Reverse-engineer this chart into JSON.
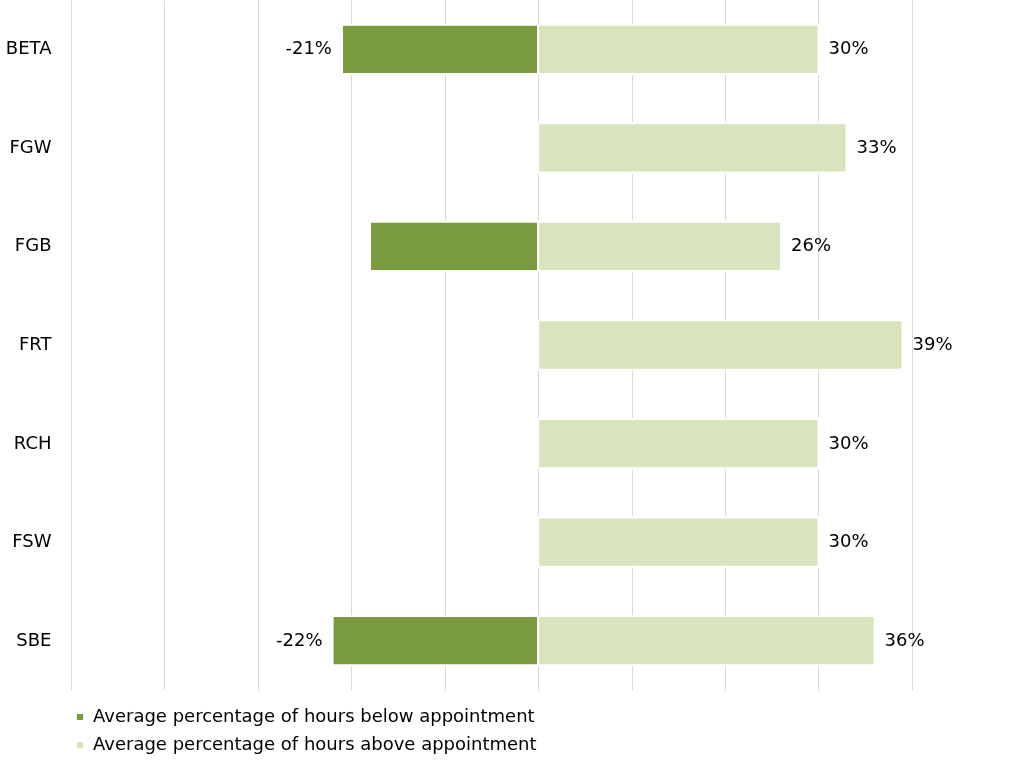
{
  "chart_data": {
    "type": "bar",
    "orientation": "horizontal",
    "stacked": true,
    "categories": [
      "BETA",
      "FGW",
      "FGB",
      "FRT",
      "RCH",
      "FSW",
      "SBE"
    ],
    "series": [
      {
        "name": "Average percentage of hours below appointment",
        "color": "#7a9a3e",
        "values": [
          -21,
          null,
          -18,
          null,
          null,
          null,
          -22
        ],
        "value_labels": [
          "-21%",
          null,
          null,
          null,
          null,
          null,
          "-22%"
        ]
      },
      {
        "name": "Average percentage of hours above appointment",
        "color": "#d8e4bc",
        "values": [
          30,
          33,
          26,
          39,
          30,
          30,
          36
        ],
        "value_labels": [
          "30%",
          "33%",
          "26%",
          "39%",
          "30%",
          "30%",
          "36%"
        ]
      }
    ],
    "xlim": [
      -50,
      49
    ],
    "xticks": [
      {
        "value": -50,
        "label": null
      },
      {
        "value": -40,
        "label": null
      },
      {
        "value": -30,
        "label": null
      },
      {
        "value": -20,
        "label": null
      },
      {
        "value": -10,
        "label": null
      },
      {
        "value": 0,
        "label": null
      },
      {
        "value": 10,
        "label": null
      },
      {
        "value": 20,
        "label": null
      },
      {
        "value": 30,
        "label": null
      },
      {
        "value": 40,
        "label": null
      }
    ],
    "tick_labels": "y",
    "grid": "x",
    "legend": "bottom"
  }
}
